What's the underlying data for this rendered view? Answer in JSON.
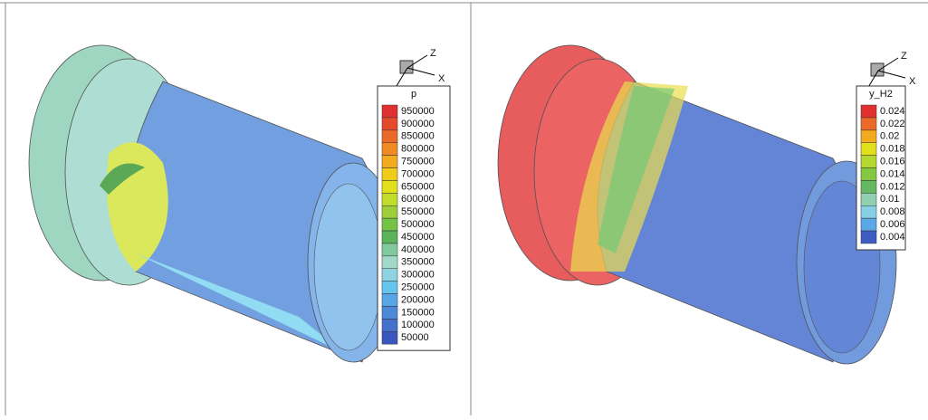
{
  "panels": [
    {
      "axes": {
        "z": "Z",
        "x": "X"
      },
      "legend": {
        "title": "p",
        "labels": [
          "950000",
          "900000",
          "850000",
          "800000",
          "750000",
          "700000",
          "650000",
          "600000",
          "550000",
          "500000",
          "450000",
          "400000",
          "350000",
          "300000",
          "250000",
          "200000",
          "150000",
          "100000",
          "50000"
        ],
        "colors": [
          "#e03030",
          "#e64a2c",
          "#ec6a27",
          "#f08a22",
          "#f2ab1e",
          "#f2cc1b",
          "#e2e01c",
          "#c2dc2c",
          "#9ccf3a",
          "#74c246",
          "#5db35a",
          "#80c99c",
          "#a2d8c8",
          "#8fd3e2",
          "#66c5ef",
          "#58a6e6",
          "#4e89d8",
          "#4570cc",
          "#3b55bf"
        ]
      }
    },
    {
      "axes": {
        "z": "Z",
        "x": "X"
      },
      "legend": {
        "title": "y_H2",
        "labels": [
          "0.024",
          "0.022",
          "0.02",
          "0.018",
          "0.016",
          "0.014",
          "0.012",
          "0.01",
          "0.008",
          "0.006",
          "0.004"
        ],
        "colors": [
          "#e03030",
          "#ec6a27",
          "#f2ab1e",
          "#e2e01c",
          "#b5d830",
          "#84c840",
          "#66b860",
          "#90d0b0",
          "#86d0e4",
          "#5aa8e6",
          "#3f5cc2"
        ]
      }
    }
  ]
}
